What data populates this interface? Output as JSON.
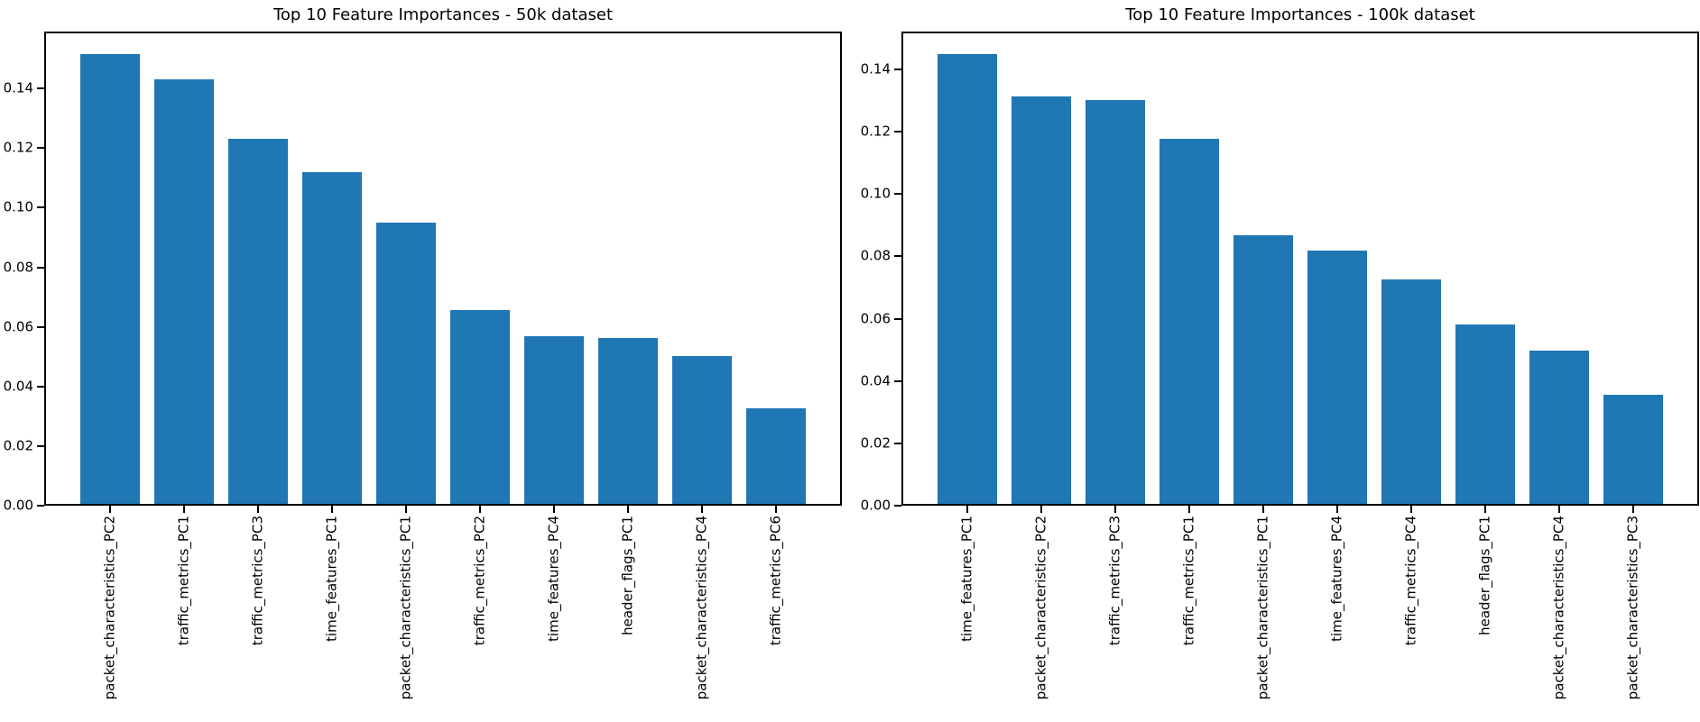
{
  "figure": {
    "background_color": "#ffffff",
    "bar_color": "#1f77b4",
    "axis_color": "#000000",
    "text_color": "#000000"
  },
  "chart_data": [
    {
      "type": "bar",
      "title": "Top 10 Feature Importances - 50k dataset",
      "xlabel": "",
      "ylabel": "",
      "categories": [
        "packet_characteristics_PC2",
        "traffic_metrics_PC1",
        "traffic_metrics_PC3",
        "time_features_PC1",
        "packet_characteristics_PC1",
        "traffic_metrics_PC2",
        "time_features_PC4",
        "header_flags_PC1",
        "packet_characteristics_PC4",
        "traffic_metrics_PC6"
      ],
      "values": [
        0.1515,
        0.1432,
        0.1232,
        0.1119,
        0.095,
        0.0655,
        0.0568,
        0.0562,
        0.0501,
        0.0328
      ],
      "ylim": [
        0,
        0.1591
      ],
      "yticks": [
        0.0,
        0.02,
        0.04,
        0.06,
        0.08,
        0.1,
        0.12,
        0.14
      ],
      "grid": false,
      "legend": null,
      "bar_color": "#1f77b4",
      "bar_width_fraction": 0.8,
      "x_tick_rotation_deg": 90
    },
    {
      "type": "bar",
      "title": "Top 10 Feature Importances - 100k dataset",
      "xlabel": "",
      "ylabel": "",
      "categories": [
        "time_features_PC1",
        "packet_characteristics_PC2",
        "traffic_metrics_PC3",
        "traffic_metrics_PC1",
        "packet_characteristics_PC1",
        "time_features_PC4",
        "traffic_metrics_PC4",
        "header_flags_PC1",
        "packet_characteristics_PC4",
        "packet_characteristics_PC3"
      ],
      "values": [
        0.1448,
        0.1312,
        0.13,
        0.1178,
        0.0868,
        0.0818,
        0.0725,
        0.058,
        0.0496,
        0.0356
      ],
      "ylim": [
        0,
        0.1521
      ],
      "yticks": [
        0.0,
        0.02,
        0.04,
        0.06,
        0.08,
        0.1,
        0.12,
        0.14
      ],
      "grid": false,
      "legend": null,
      "bar_color": "#1f77b4",
      "bar_width_fraction": 0.8,
      "x_tick_rotation_deg": 90
    }
  ]
}
